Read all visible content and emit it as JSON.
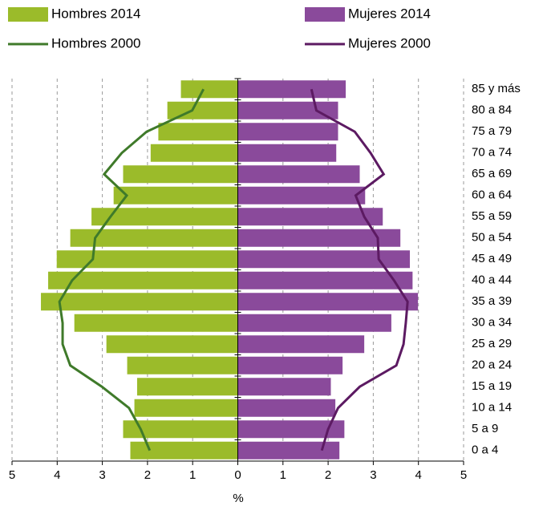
{
  "chart_data": {
    "type": "pyramid",
    "x_label": "%",
    "categories": [
      "0 a 4",
      "5 a 9",
      "10 a 14",
      "15 a 19",
      "20 a 24",
      "25 a 29",
      "30 a 34",
      "35 a 39",
      "40 a 44",
      "45 a 49",
      "50 a 54",
      "55 a 59",
      "60 a 64",
      "65 a 69",
      "70 a 74",
      "75 a 79",
      "80 a 84",
      "85 y más"
    ],
    "series": [
      {
        "name": "Hombres 2014",
        "kind": "bar",
        "side": "left",
        "color": "#9bbb2a",
        "values": [
          2.38,
          2.54,
          2.29,
          2.23,
          2.45,
          2.91,
          3.62,
          4.36,
          4.2,
          4.01,
          3.71,
          3.24,
          2.75,
          2.54,
          1.93,
          1.76,
          1.56,
          1.26
        ]
      },
      {
        "name": "Mujeres 2014",
        "kind": "bar",
        "side": "right",
        "color": "#8a4a9b",
        "values": [
          2.25,
          2.36,
          2.16,
          2.06,
          2.32,
          2.8,
          3.4,
          3.99,
          3.87,
          3.81,
          3.6,
          3.21,
          2.82,
          2.7,
          2.18,
          2.22,
          2.22,
          2.39
        ]
      },
      {
        "name": "Hombres 2000",
        "kind": "line",
        "side": "left",
        "color": "#3f7a2a",
        "values": [
          1.95,
          2.15,
          2.41,
          3.01,
          3.71,
          3.88,
          3.88,
          3.95,
          3.67,
          3.21,
          3.16,
          2.82,
          2.46,
          2.96,
          2.57,
          2.02,
          1.01,
          0.76
        ]
      },
      {
        "name": "Mujeres 2000",
        "kind": "line",
        "side": "right",
        "color": "#5c1a62",
        "values": [
          1.86,
          2.0,
          2.22,
          2.7,
          3.51,
          3.67,
          3.72,
          3.76,
          3.46,
          3.12,
          3.1,
          2.8,
          2.61,
          3.23,
          2.94,
          2.59,
          1.74,
          1.63
        ]
      }
    ],
    "xlim": [
      -5,
      5
    ],
    "xticks": [
      {
        "value": -5,
        "label": "5"
      },
      {
        "value": -4,
        "label": "4"
      },
      {
        "value": -3,
        "label": "3"
      },
      {
        "value": -2,
        "label": "2"
      },
      {
        "value": -1,
        "label": "1"
      },
      0,
      1,
      2,
      3,
      4,
      5
    ],
    "grid": true
  }
}
